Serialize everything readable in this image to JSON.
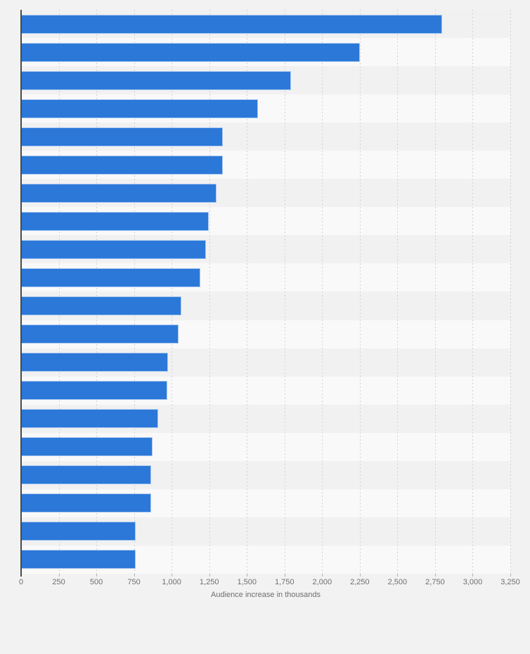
{
  "chart_data": {
    "type": "bar",
    "orientation": "horizontal",
    "title": "",
    "xlabel": "Audience increase in thousands",
    "ylabel": "",
    "xlim": [
      0,
      3250
    ],
    "tick_step": 250,
    "x_ticks": [
      "0",
      "250",
      "500",
      "750",
      "1,000",
      "1,250",
      "1,500",
      "1,750",
      "2,000",
      "2,250",
      "2,500",
      "2,750",
      "3,000",
      "3,250"
    ],
    "categories_visible": false,
    "values": [
      2795,
      2250,
      1795,
      1575,
      1340,
      1340,
      1300,
      1245,
      1230,
      1190,
      1065,
      1045,
      975,
      970,
      910,
      875,
      865,
      865,
      760,
      760
    ],
    "grid": "vertical-dashed",
    "legend": "none",
    "colors": {
      "bar": "#2b78d9",
      "bar_border": "#a9c7ef",
      "background": "#f2f2f2",
      "stripe_odd": "#f1f1f2",
      "stripe_even": "#f9f9fa",
      "gridline": "#d2d2d4",
      "axis_line": "#4a4a4a",
      "tick_text": "#6e6e6e"
    }
  }
}
